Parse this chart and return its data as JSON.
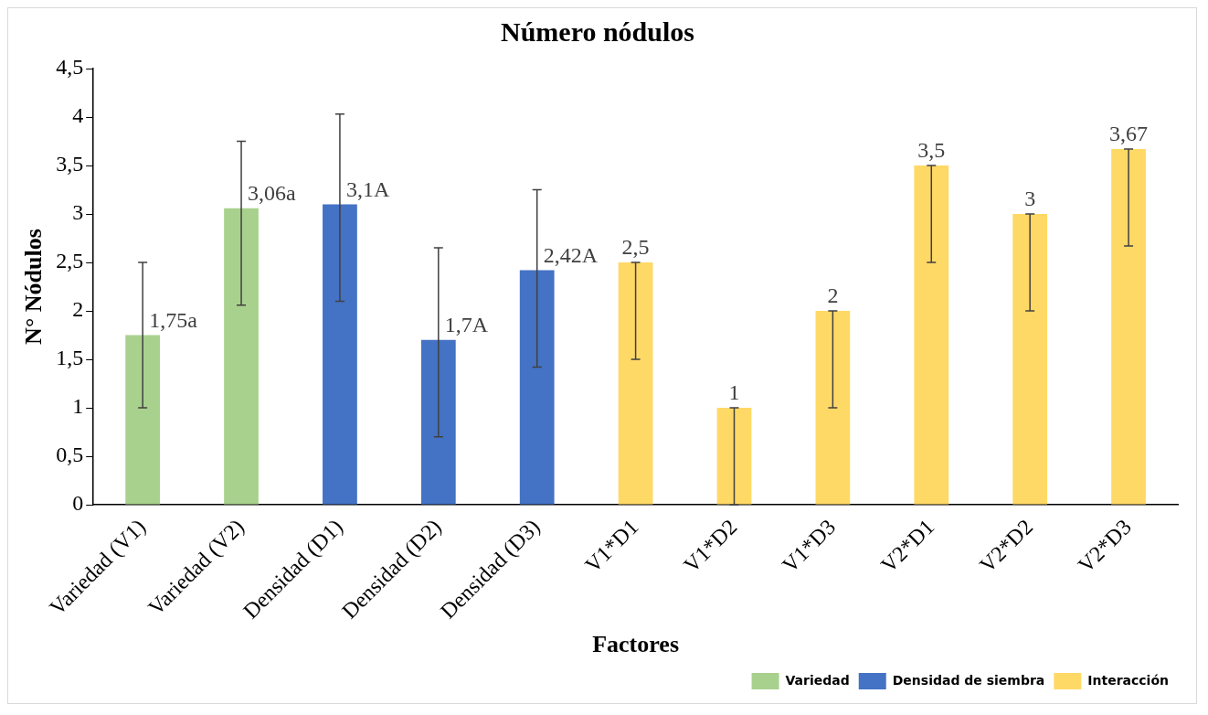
{
  "chart_data": {
    "type": "bar",
    "title": "Número nódulos",
    "xlabel": "Factores",
    "ylabel": "N° Nódulos",
    "categories": [
      "Variedad (V1)",
      "Variedad (V2)",
      "Densidad (D1)",
      "Densidad (D2)",
      "Densidad (D3)",
      "V1*D1",
      "V1*D2",
      "V1*D3",
      "V2*D1",
      "V2*D2",
      "V2*D3"
    ],
    "series": [
      {
        "name": "Variedad",
        "color": "#a9d18e",
        "values": [
          1.75,
          3.06,
          null,
          null,
          null,
          null,
          null,
          null,
          null,
          null,
          null
        ],
        "errors": [
          [
            1,
            2.5
          ],
          [
            2.06,
            3.75
          ],
          null,
          null,
          null,
          null,
          null,
          null,
          null,
          null,
          null
        ],
        "value_labels": [
          "1,75a",
          "3,06a",
          null,
          null,
          null,
          null,
          null,
          null,
          null,
          null,
          null
        ]
      },
      {
        "name": "Densidad de siembra",
        "color": "#4472c4",
        "values": [
          null,
          null,
          3.1,
          1.7,
          2.42,
          null,
          null,
          null,
          null,
          null,
          null
        ],
        "errors": [
          null,
          null,
          [
            2.1,
            4.03
          ],
          [
            0.7,
            2.65
          ],
          [
            1.42,
            3.25
          ],
          null,
          null,
          null,
          null,
          null,
          null
        ],
        "value_labels": [
          null,
          null,
          "3,1A",
          "1,7A",
          "2,42A",
          null,
          null,
          null,
          null,
          null,
          null
        ]
      },
      {
        "name": "Interacción",
        "color": "#ffd966",
        "values": [
          null,
          null,
          null,
          null,
          null,
          2.5,
          1,
          2,
          3.5,
          3,
          3.67
        ],
        "errors": [
          null,
          null,
          null,
          null,
          null,
          [
            1.5,
            2.5
          ],
          [
            0,
            1
          ],
          [
            1,
            2
          ],
          [
            2.5,
            3.5
          ],
          [
            2,
            3
          ],
          [
            2.67,
            3.67
          ]
        ],
        "value_labels": [
          null,
          null,
          null,
          null,
          null,
          "2,5",
          "1",
          "2",
          "3,5",
          "3",
          "3,67"
        ]
      }
    ],
    "ylim": [
      0,
      4.5
    ],
    "yticks": [
      0,
      {
        "value": 0.5,
        "label": "0,5"
      },
      1,
      {
        "value": 1.5,
        "label": "1,5"
      },
      2,
      {
        "value": 2.5,
        "label": "2,5"
      },
      3,
      {
        "value": 3.5,
        "label": "3,5"
      },
      4,
      {
        "value": 4.5,
        "label": "4,5"
      }
    ],
    "grid": false,
    "legend": "bottom right"
  }
}
